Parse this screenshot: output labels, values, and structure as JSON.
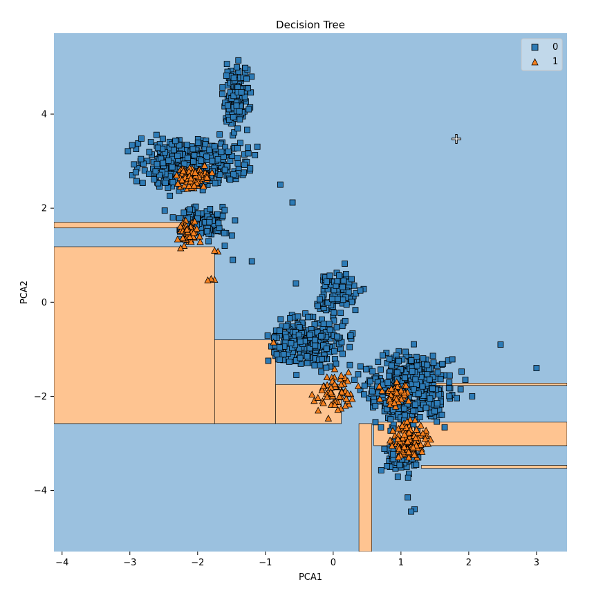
{
  "chart_data": {
    "type": "scatter",
    "title": "Decision Tree",
    "xlabel": "PCA1",
    "ylabel": "PCA2",
    "xlim": [
      -4.12,
      3.45
    ],
    "ylim": [
      -5.3,
      5.72
    ],
    "xticks": [
      -4,
      -3,
      -2,
      -1,
      0,
      1,
      2,
      3
    ],
    "yticks": [
      -4,
      -2,
      0,
      2,
      4
    ],
    "grid": false,
    "legend_position": "top-right",
    "colors": {
      "region_0": "#9bc1df",
      "region_1": "#fec491",
      "class_0": "#2d7bb6",
      "class_1": "#f47f1e"
    },
    "decision_regions": [
      {
        "class": "1",
        "x": [
          -4.12,
          -1.75
        ],
        "y": [
          -2.58,
          1.18
        ]
      },
      {
        "class": "1",
        "x": [
          -1.75,
          -0.85
        ],
        "y": [
          -2.58,
          -0.8
        ]
      },
      {
        "class": "1",
        "x": [
          -0.85,
          0.12
        ],
        "y": [
          -2.58,
          -1.75
        ]
      },
      {
        "class": "1",
        "x": [
          -4.12,
          -1.95
        ],
        "y": [
          1.58,
          1.7
        ]
      },
      {
        "class": "1",
        "x": [
          0.38,
          0.57
        ],
        "y": [
          -5.3,
          -2.58
        ]
      },
      {
        "class": "1",
        "x": [
          0.6,
          3.45
        ],
        "y": [
          -3.05,
          -2.55
        ]
      },
      {
        "class": "1",
        "x": [
          1.3,
          3.45
        ],
        "y": [
          -3.53,
          -3.47
        ]
      },
      {
        "class": "1",
        "x": [
          1.2,
          3.45
        ],
        "y": [
          -1.77,
          -1.72
        ]
      }
    ],
    "series": [
      {
        "name": "0",
        "marker": "square",
        "clusters": [
          {
            "count": 380,
            "x": [
              -3.2,
              -1.0
            ],
            "y": [
              2.2,
              3.7
            ]
          },
          {
            "count": 150,
            "x": [
              -1.7,
              -1.15
            ],
            "y": [
              3.5,
              5.2
            ]
          },
          {
            "count": 120,
            "x": [
              -2.5,
              -1.3
            ],
            "y": [
              1.2,
              2.2
            ]
          },
          {
            "count": 90,
            "x": [
              -0.4,
              0.5
            ],
            "y": [
              -0.5,
              0.8
            ]
          },
          {
            "count": 300,
            "x": [
              -1.2,
              0.4
            ],
            "y": [
              -1.6,
              -0.1
            ]
          },
          {
            "count": 380,
            "x": [
              0.2,
              2.0
            ],
            "y": [
              -2.9,
              -0.8
            ]
          },
          {
            "count": 70,
            "x": [
              0.6,
              1.4
            ],
            "y": [
              -3.8,
              -2.7
            ]
          }
        ],
        "points": [
          {
            "x": -0.6,
            "y": 2.12
          },
          {
            "x": -0.78,
            "y": 2.5
          },
          {
            "x": -1.2,
            "y": 0.87
          },
          {
            "x": 1.2,
            "y": -4.4
          },
          {
            "x": 1.15,
            "y": -4.45
          },
          {
            "x": 1.1,
            "y": -4.15
          },
          {
            "x": 2.05,
            "y": -2.0
          },
          {
            "x": 2.47,
            "y": -0.9
          },
          {
            "x": 3.0,
            "y": -1.4
          },
          {
            "x": 0.45,
            "y": 0.28
          },
          {
            "x": 0.4,
            "y": 0.25
          },
          {
            "x": 0.17,
            "y": 0.82
          },
          {
            "x": -1.48,
            "y": 0.9
          },
          {
            "x": -1.6,
            "y": 1.2
          },
          {
            "x": -0.55,
            "y": 0.4
          },
          {
            "x": 1.95,
            "y": -1.65
          },
          {
            "x": 1.88,
            "y": -1.85
          }
        ]
      },
      {
        "name": "1",
        "marker": "triangle",
        "clusters": [
          {
            "count": 90,
            "x": [
              -2.35,
              -1.75
            ],
            "y": [
              2.35,
              3.0
            ]
          },
          {
            "count": 50,
            "x": [
              -2.35,
              -1.95
            ],
            "y": [
              1.1,
              1.85
            ]
          },
          {
            "count": 60,
            "x": [
              -0.45,
              0.5
            ],
            "y": [
              -2.6,
              -1.3
            ]
          },
          {
            "count": 50,
            "x": [
              0.6,
              1.2
            ],
            "y": [
              -2.3,
              -1.6
            ]
          },
          {
            "count": 140,
            "x": [
              0.75,
              1.5
            ],
            "y": [
              -3.5,
              -2.4
            ]
          }
        ],
        "points": [
          {
            "x": -1.75,
            "y": 0.48
          },
          {
            "x": -1.8,
            "y": 0.5
          },
          {
            "x": -1.85,
            "y": 0.47
          },
          {
            "x": -1.7,
            "y": 1.08
          },
          {
            "x": -1.75,
            "y": 1.1
          },
          {
            "x": -0.88,
            "y": -0.85
          },
          {
            "x": -2.25,
            "y": 1.15
          }
        ]
      }
    ]
  }
}
